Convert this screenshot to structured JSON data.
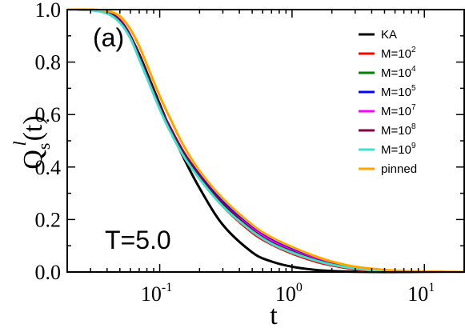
{
  "chart_data": {
    "type": "line",
    "panel_label": "(a)",
    "annotation": "T=5.0",
    "xlabel": "t",
    "ylabel": {
      "base": "Q",
      "sub": "s",
      "sup": "l",
      "suffix": "(t)"
    },
    "xscale": "log",
    "xlim": [
      0.02,
      20
    ],
    "ylim": [
      0.0,
      1.0
    ],
    "x_ticks": [
      {
        "value": 0.1,
        "base": "10",
        "exp": "-1"
      },
      {
        "value": 1,
        "base": "10",
        "exp": "0"
      },
      {
        "value": 10,
        "base": "10",
        "exp": "1"
      }
    ],
    "y_ticks": [
      {
        "value": 0.0,
        "label": "0.0"
      },
      {
        "value": 0.2,
        "label": "0.2"
      },
      {
        "value": 0.4,
        "label": "0.4"
      },
      {
        "value": 0.6,
        "label": "0.6"
      },
      {
        "value": 0.8,
        "label": "0.8"
      },
      {
        "value": 1.0,
        "label": "1.0"
      }
    ],
    "grid": false,
    "legend_position": "top-right",
    "x": [
      0.02,
      0.03,
      0.04,
      0.05,
      0.06,
      0.07,
      0.08,
      0.1,
      0.12,
      0.15,
      0.2,
      0.3,
      0.5,
      0.7,
      1,
      1.5,
      2,
      3,
      5,
      7,
      10,
      15,
      20
    ],
    "series": [
      {
        "name": "KA",
        "label_base": "KA",
        "label_exp": "",
        "color": "#000000",
        "values": [
          1.0,
          0.999,
          0.99,
          0.96,
          0.9,
          0.83,
          0.76,
          0.64,
          0.545,
          0.44,
          0.32,
          0.18,
          0.075,
          0.04,
          0.02,
          0.008,
          0.004,
          0.001,
          0.0,
          0.0,
          0.0,
          0.0,
          0.0
        ]
      },
      {
        "name": "M=10^2",
        "label_base": "M=10",
        "label_exp": "2",
        "color": "#ff0000",
        "values": [
          1.0,
          0.999,
          0.99,
          0.96,
          0.9,
          0.82,
          0.75,
          0.63,
          0.55,
          0.46,
          0.36,
          0.25,
          0.15,
          0.105,
          0.07,
          0.04,
          0.025,
          0.01,
          0.003,
          0.001,
          0.0,
          0.0,
          0.0
        ]
      },
      {
        "name": "M=10^4",
        "label_base": "M=10",
        "label_exp": "4",
        "color": "#008000",
        "values": [
          1.0,
          0.999,
          0.99,
          0.96,
          0.9,
          0.82,
          0.75,
          0.63,
          0.55,
          0.46,
          0.37,
          0.26,
          0.16,
          0.115,
          0.08,
          0.048,
          0.03,
          0.014,
          0.005,
          0.002,
          0.001,
          0.0,
          0.0
        ]
      },
      {
        "name": "M=10^5",
        "label_base": "M=10",
        "label_exp": "5",
        "color": "#0000ff",
        "values": [
          1.0,
          0.999,
          0.99,
          0.96,
          0.9,
          0.82,
          0.75,
          0.63,
          0.55,
          0.46,
          0.37,
          0.27,
          0.17,
          0.125,
          0.088,
          0.054,
          0.035,
          0.016,
          0.006,
          0.003,
          0.001,
          0.0,
          0.0
        ]
      },
      {
        "name": "M=10^7",
        "label_base": "M=10",
        "label_exp": "7",
        "color": "#ff00ff",
        "values": [
          1.0,
          0.999,
          0.99,
          0.96,
          0.9,
          0.82,
          0.75,
          0.63,
          0.55,
          0.46,
          0.365,
          0.26,
          0.165,
          0.118,
          0.082,
          0.05,
          0.032,
          0.015,
          0.005,
          0.002,
          0.001,
          0.0,
          0.0
        ]
      },
      {
        "name": "M=10^8",
        "label_base": "M=10",
        "label_exp": "8",
        "color": "#800040",
        "values": [
          1.0,
          0.999,
          0.99,
          0.96,
          0.9,
          0.82,
          0.75,
          0.63,
          0.55,
          0.46,
          0.365,
          0.26,
          0.16,
          0.112,
          0.078,
          0.047,
          0.03,
          0.014,
          0.005,
          0.002,
          0.001,
          0.0,
          0.0
        ]
      },
      {
        "name": "M=10^9",
        "label_base": "M=10",
        "label_exp": "9",
        "color": "#40e0d0",
        "values": [
          1.0,
          0.998,
          0.985,
          0.95,
          0.89,
          0.81,
          0.74,
          0.62,
          0.535,
          0.445,
          0.355,
          0.25,
          0.155,
          0.108,
          0.074,
          0.044,
          0.028,
          0.013,
          0.004,
          0.002,
          0.001,
          0.0,
          0.0
        ]
      },
      {
        "name": "pinned",
        "label_base": "pinned",
        "label_exp": "",
        "color": "#ffa500",
        "values": [
          1.0,
          1.0,
          0.995,
          0.975,
          0.925,
          0.86,
          0.79,
          0.67,
          0.585,
          0.485,
          0.385,
          0.28,
          0.18,
          0.132,
          0.095,
          0.06,
          0.04,
          0.02,
          0.008,
          0.004,
          0.002,
          0.001,
          0.0
        ]
      }
    ]
  }
}
